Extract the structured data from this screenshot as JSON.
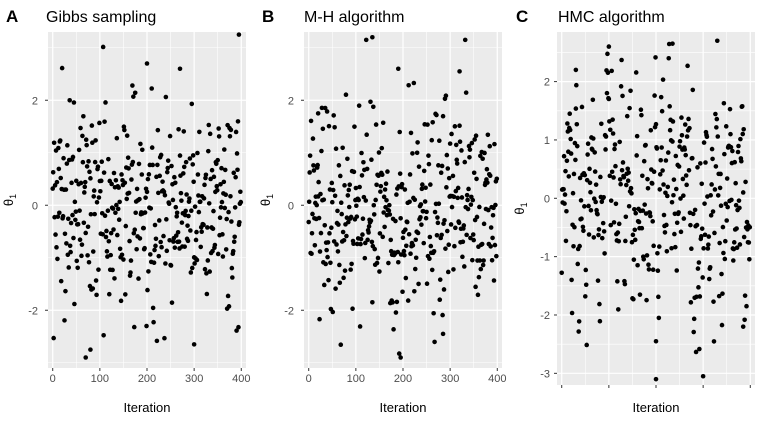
{
  "chart_data": [
    {
      "type": "scatter",
      "panel_tag": "A",
      "title": "Gibbs sampling",
      "xlabel": "Iteration",
      "ylabel": "θ",
      "ylabel_subscript": "1",
      "xlim": [
        -10,
        410
      ],
      "ylim": [
        -3.1,
        3.3
      ],
      "x_ticks": [
        0,
        100,
        200,
        300,
        400
      ],
      "x_tick_labels": [
        "0",
        "100",
        "200",
        "300",
        "400"
      ],
      "y_ticks": [
        -2,
        0,
        2
      ],
      "y_tick_labels": [
        "-2",
        "0",
        "2"
      ],
      "point_count": 400,
      "sample_points": [
        [
          70,
          -2.9
        ],
        [
          80,
          -2.75
        ],
        [
          200,
          2.7
        ],
        [
          270,
          2.6
        ],
        [
          300,
          -2.65
        ],
        [
          395,
          3.25
        ]
      ]
    },
    {
      "type": "scatter",
      "panel_tag": "B",
      "title": "M-H algorithm",
      "xlabel": "Iteration",
      "ylabel": "θ",
      "ylabel_subscript": "1",
      "xlim": [
        -10,
        410
      ],
      "ylim": [
        -3.1,
        3.3
      ],
      "x_ticks": [
        0,
        100,
        200,
        300,
        400
      ],
      "x_tick_labels": [
        "0",
        "100",
        "200",
        "300",
        "400"
      ],
      "y_ticks": [
        -2,
        0,
        2
      ],
      "y_tick_labels": [
        "-2",
        "0",
        "2"
      ],
      "point_count": 400,
      "sample_points": [
        [
          135,
          3.2
        ],
        [
          195,
          -2.9
        ],
        [
          190,
          2.6
        ],
        [
          285,
          -2.45
        ],
        [
          20,
          1.75
        ],
        [
          320,
          2.55
        ]
      ]
    },
    {
      "type": "scatter",
      "panel_tag": "C",
      "title": "HMC algorithm",
      "xlabel": "Iteration",
      "ylabel": "θ",
      "ylabel_subscript": "1",
      "xlim": [
        -10,
        410
      ],
      "ylim": [
        -3.2,
        2.85
      ],
      "x_tick_count": 5,
      "x_tick_labels": [],
      "y_ticks": [
        -3,
        -2,
        -1,
        0,
        1,
        2
      ],
      "y_tick_labels": [
        "-3",
        "-2",
        "-1",
        "0",
        "1",
        "2"
      ],
      "point_count": 400,
      "sample_points": [
        [
          200,
          -3.1
        ],
        [
          200,
          -2.45
        ],
        [
          100,
          2.6
        ],
        [
          235,
          2.65
        ],
        [
          385,
          -2.2
        ],
        [
          30,
          2.2
        ]
      ]
    }
  ]
}
